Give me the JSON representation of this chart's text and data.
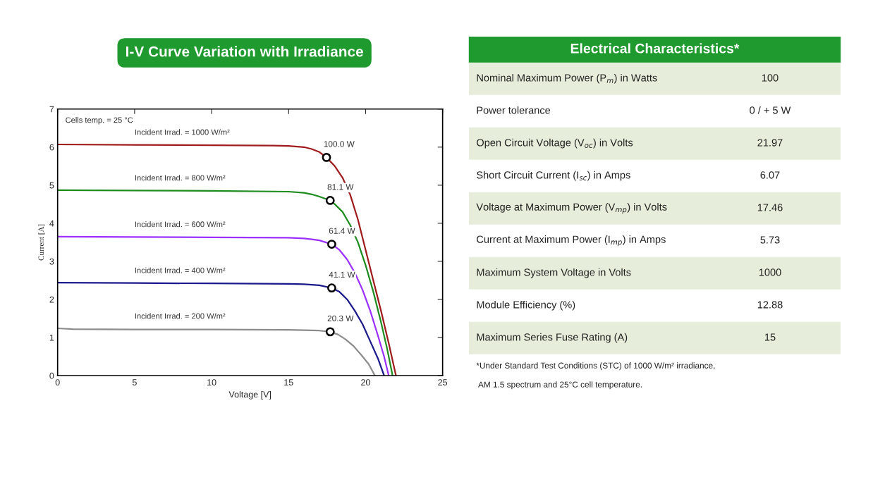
{
  "chart_data": [
    {
      "type": "line",
      "title": "I-V Curve Variation with Irradiance",
      "xlabel": "Voltage [V]",
      "ylabel": "Current [A]",
      "xlim": [
        0,
        25
      ],
      "xticks": [
        0,
        5,
        10,
        15,
        20,
        25
      ],
      "ylim": [
        0,
        7
      ],
      "yticks": [
        0,
        1,
        2,
        3,
        4,
        5,
        6,
        7
      ],
      "grid": false,
      "marker": "none",
      "line_style": "solid",
      "annotations": [
        "Cells temp. = 25 °C",
        {
          "text": "100.0 W",
          "x": 17.46,
          "y": 5.73
        },
        {
          "text": "81.1 W",
          "x": 17.7,
          "y": 4.6
        },
        {
          "text": "61.4 W",
          "x": 17.8,
          "y": 3.45
        },
        {
          "text": "41.1 W",
          "x": 17.8,
          "y": 2.3
        },
        {
          "text": "20.3 W",
          "x": 17.7,
          "y": 1.15
        }
      ],
      "series": [
        {
          "name": "Incident Irrad. = 1000 W/m²",
          "color": "#a01c1c",
          "x": [
            0,
            5,
            10,
            14,
            15,
            16,
            16.5,
            17,
            17.46,
            18,
            18.5,
            19,
            19.5,
            20,
            20.5,
            21,
            21.5,
            21.97
          ],
          "values": [
            6.07,
            6.06,
            6.05,
            6.04,
            6.03,
            6.0,
            5.95,
            5.87,
            5.73,
            5.5,
            5.2,
            4.75,
            4.1,
            3.3,
            2.5,
            1.7,
            0.85,
            0
          ]
        },
        {
          "name": "Incident Irrad. = 800 W/m²",
          "color": "#1e8c1e",
          "x": [
            0,
            5,
            10,
            15,
            16,
            16.5,
            17,
            17.7,
            18,
            18.5,
            19,
            19.5,
            20,
            20.5,
            21,
            21.4,
            21.75
          ],
          "values": [
            4.87,
            4.86,
            4.85,
            4.83,
            4.8,
            4.76,
            4.7,
            4.6,
            4.5,
            4.3,
            3.95,
            3.5,
            2.9,
            2.2,
            1.4,
            0.7,
            0
          ]
        },
        {
          "name": "Incident Irrad. = 600 W/m²",
          "color": "#9b30ff",
          "x": [
            0,
            5,
            10,
            15,
            16,
            16.5,
            17,
            17.8,
            18.3,
            18.8,
            19.3,
            19.8,
            20.3,
            20.8,
            21.2,
            21.5
          ],
          "values": [
            3.65,
            3.64,
            3.63,
            3.62,
            3.6,
            3.58,
            3.55,
            3.45,
            3.3,
            3.05,
            2.7,
            2.25,
            1.7,
            1.05,
            0.5,
            0
          ]
        },
        {
          "name": "Incident Irrad. = 400 W/m²",
          "color": "#1a1a8c",
          "x": [
            0,
            5,
            10,
            15,
            16,
            17,
            17.8,
            18.3,
            18.8,
            19.3,
            19.8,
            20.3,
            20.8,
            21.2
          ],
          "values": [
            2.44,
            2.43,
            2.42,
            2.41,
            2.4,
            2.37,
            2.3,
            2.2,
            2.0,
            1.7,
            1.35,
            0.9,
            0.45,
            0
          ]
        },
        {
          "name": "Incident Irrad. = 200 W/m²",
          "color": "#8c8c8c",
          "x": [
            0,
            1,
            5,
            10,
            15,
            16,
            17,
            17.7,
            18.2,
            18.7,
            19.2,
            19.7,
            20.2,
            20.6
          ],
          "values": [
            1.24,
            1.22,
            1.21,
            1.21,
            1.2,
            1.19,
            1.18,
            1.15,
            1.08,
            0.95,
            0.78,
            0.55,
            0.3,
            0
          ]
        },
        {
          "type": "scatter",
          "marker": "circle",
          "color": "#000000",
          "x": [
            17.46,
            17.7,
            17.8,
            17.8,
            17.7
          ],
          "values": [
            5.73,
            4.6,
            3.45,
            2.3,
            1.15
          ]
        }
      ]
    },
    {
      "type": "other",
      "title": "Electrical Characteristics*",
      "categories": [
        "Nominal Maximum Power (P$_{m}$) in Watts",
        "Power tolerance",
        "Open Circuit Voltage (V$_{oc}$) in Volts",
        "Short Circuit Current (I$_{sc}$) in Amps",
        "Voltage at Maximum Power (V$_{mp}$) in Volts",
        "Current at Maximum Power (I$_{mp}$) in Amps",
        "Maximum System Voltage in Volts",
        "Module Efficiency (%)",
        "Maximum Series Fuse Rating (A)"
      ],
      "value_labels": [
        "100",
        "0 / + 5 W",
        "21.97",
        "6.07",
        "17.46",
        "5.73",
        "1000",
        "12.88",
        "15"
      ],
      "annotations": [
        "*Under Standard Test Conditions (STC) of 1000 W/m² irradiance,",
        " AM 1.5 spectrum and 25°C cell temperature."
      ]
    }
  ]
}
